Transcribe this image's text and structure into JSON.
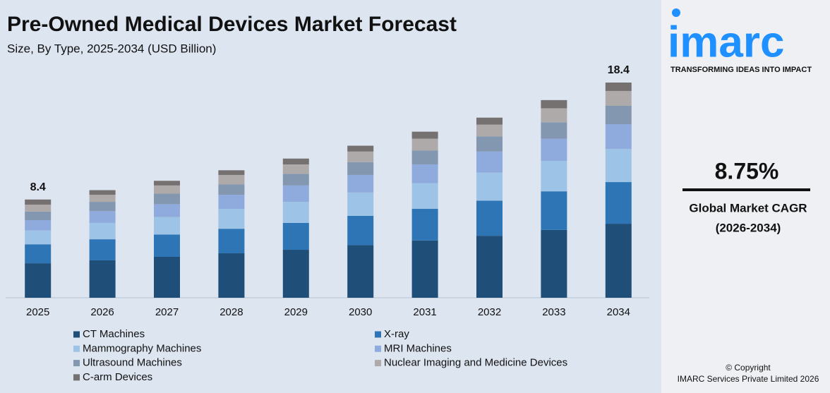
{
  "chart_data": {
    "type": "stacked_bar",
    "title": "Pre-Owned Medical Devices Market Forecast",
    "subtitle": "Size, By Type, 2025-2034 (USD Billion)",
    "categories": [
      "2025",
      "2026",
      "2027",
      "2028",
      "2029",
      "2030",
      "2031",
      "2032",
      "2033",
      "2034"
    ],
    "series": [
      {
        "name": "CT Machines",
        "color": "#1f4e79",
        "values": [
          2.95,
          3.2,
          3.5,
          3.8,
          4.1,
          4.5,
          4.9,
          5.3,
          5.8,
          6.33
        ]
      },
      {
        "name": "X-ray",
        "color": "#2e75b6",
        "values": [
          1.62,
          1.8,
          1.9,
          2.1,
          2.3,
          2.5,
          2.7,
          3.0,
          3.3,
          3.56
        ]
      },
      {
        "name": "Mammography Machines",
        "color": "#9dc3e6",
        "values": [
          1.18,
          1.4,
          1.5,
          1.7,
          1.8,
          2.0,
          2.2,
          2.4,
          2.6,
          2.84
        ]
      },
      {
        "name": "MRI Machines",
        "color": "#8faadc",
        "values": [
          0.88,
          1.0,
          1.1,
          1.2,
          1.4,
          1.5,
          1.6,
          1.8,
          1.9,
          2.11
        ]
      },
      {
        "name": "Ultrasound Machines",
        "color": "#8497b0",
        "values": [
          0.74,
          0.8,
          0.9,
          0.9,
          1.0,
          1.1,
          1.2,
          1.3,
          1.4,
          1.57
        ]
      },
      {
        "name": "Nuclear Imaging and Medicine Devices",
        "color": "#aeaaaa",
        "values": [
          0.59,
          0.6,
          0.7,
          0.8,
          0.8,
          0.9,
          1.0,
          1.0,
          1.2,
          1.27
        ]
      },
      {
        "name": "C-arm Devices",
        "color": "#767171",
        "values": [
          0.44,
          0.4,
          0.4,
          0.4,
          0.5,
          0.5,
          0.6,
          0.6,
          0.7,
          0.72
        ]
      }
    ],
    "totals": [
      8.4,
      null,
      null,
      null,
      null,
      null,
      null,
      null,
      null,
      18.4
    ]
  },
  "sidebar": {
    "logo": "imarc",
    "tagline": "TRANSFORMING IDEAS INTO IMPACT",
    "cagr": "8.75%",
    "cagr_label": "Global Market CAGR",
    "cagr_period": "(2026-2034)",
    "copyright": "© Copyright",
    "company": "IMARC Services Private Limited 2026"
  }
}
